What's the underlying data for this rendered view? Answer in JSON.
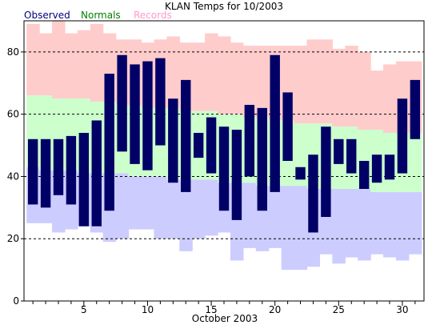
{
  "chart_data": {
    "type": "bar",
    "title": "KLAN Temps for 10/2003",
    "xlabel": "October 2003",
    "ylabel": "",
    "xlim": [
      0.3,
      31.7
    ],
    "ylim": [
      0,
      90
    ],
    "grid": "dashed horizontal at 20, 40, 60, 80",
    "legend": [
      {
        "name": "Observed",
        "color": "#000080"
      },
      {
        "name": "Normals",
        "color": "#008000"
      },
      {
        "name": "Records",
        "color": "#ff99cc"
      }
    ],
    "y_ticks": [
      0,
      20,
      40,
      60,
      80
    ],
    "x_ticks": [
      5,
      10,
      15,
      20,
      25,
      30
    ],
    "days": [
      1,
      2,
      3,
      4,
      5,
      6,
      7,
      8,
      9,
      10,
      11,
      12,
      13,
      14,
      15,
      16,
      17,
      18,
      19,
      20,
      21,
      22,
      23,
      24,
      25,
      26,
      27,
      28,
      29,
      30,
      31
    ],
    "series": [
      {
        "name": "Records",
        "color": "#ffcccc",
        "high": [
          89,
          86,
          90,
          86,
          87,
          89,
          86,
          84,
          84,
          83,
          84,
          85,
          83,
          83,
          86,
          85,
          83,
          82,
          82,
          82,
          82,
          82,
          84,
          84,
          81,
          82,
          80,
          74,
          76,
          77,
          77
        ],
        "low": [
          25,
          25,
          22,
          23,
          24,
          22,
          19,
          20,
          23,
          23,
          20,
          20,
          16,
          20,
          21,
          22,
          13,
          17,
          16,
          17,
          10,
          10,
          11,
          15,
          12,
          14,
          13,
          15,
          14,
          13,
          15
        ]
      },
      {
        "name": "Normals",
        "color": "#ccffcc",
        "high": [
          66,
          66,
          65,
          65,
          65,
          64,
          64,
          63,
          63,
          62,
          62,
          62,
          61,
          61,
          61,
          60,
          60,
          59,
          59,
          58,
          58,
          57,
          57,
          57,
          56,
          56,
          55,
          55,
          54,
          54,
          54
        ],
        "low": [
          43,
          42,
          42,
          42,
          41,
          41,
          41,
          41,
          40,
          40,
          40,
          39,
          39,
          39,
          39,
          38,
          38,
          38,
          37,
          37,
          37,
          37,
          36,
          36,
          36,
          36,
          36,
          35,
          35,
          35,
          35
        ]
      },
      {
        "name": "Observed",
        "color": "#000066",
        "high": [
          52,
          52,
          52,
          53,
          54,
          58,
          73,
          79,
          76,
          77,
          78,
          65,
          71,
          54,
          59,
          56,
          55,
          63,
          62,
          79,
          67,
          43,
          47,
          56,
          52,
          52,
          45,
          47,
          47,
          65,
          71
        ],
        "low": [
          31,
          30,
          34,
          31,
          24,
          24,
          29,
          48,
          44,
          42,
          50,
          38,
          35,
          46,
          41,
          29,
          26,
          40,
          29,
          35,
          45,
          39,
          22,
          27,
          44,
          41,
          36,
          38,
          39,
          41,
          52
        ]
      }
    ]
  }
}
